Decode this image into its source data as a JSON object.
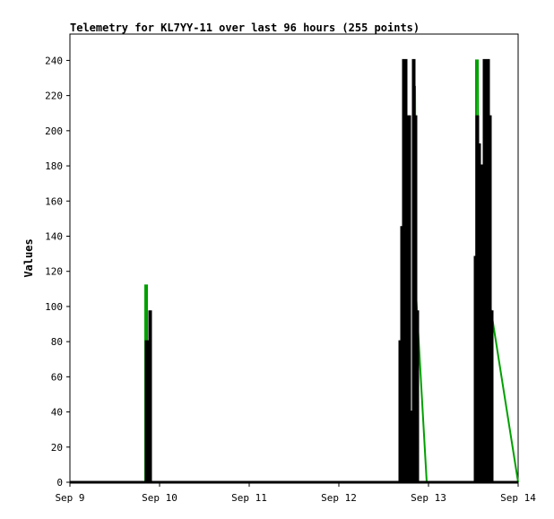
{
  "chart_data": {
    "type": "line",
    "title": "Telemetry for KL7YY-11 over last 96 hours (255 points)",
    "xlabel": "",
    "ylabel": "Values",
    "ylim": [
      0,
      255
    ],
    "yticks": [
      0,
      20,
      40,
      60,
      80,
      100,
      120,
      140,
      160,
      180,
      200,
      220,
      240
    ],
    "xlim": [
      "Sep 9",
      "Sep 14"
    ],
    "xticks": [
      "Sep 9",
      "Sep 10",
      "Sep 11",
      "Sep 12",
      "Sep 13",
      "Sep 14"
    ],
    "grid": false,
    "series": [
      {
        "color": "#00a000",
        "points": [
          [
            0.0,
            0
          ],
          [
            0.84,
            0
          ],
          [
            0.84,
            112
          ],
          [
            0.86,
            112
          ],
          [
            0.86,
            15
          ],
          [
            0.88,
            0
          ],
          [
            3.72,
            0
          ],
          [
            3.72,
            240
          ],
          [
            3.74,
            240
          ],
          [
            3.75,
            60
          ],
          [
            3.78,
            0
          ],
          [
            3.84,
            0
          ],
          [
            3.84,
            225
          ],
          [
            3.85,
            225
          ],
          [
            3.86,
            108
          ],
          [
            3.98,
            0
          ],
          [
            4.53,
            0
          ],
          [
            4.53,
            240
          ],
          [
            4.55,
            240
          ],
          [
            4.56,
            110
          ],
          [
            4.6,
            0
          ],
          [
            4.68,
            0
          ],
          [
            4.68,
            190
          ],
          [
            4.69,
            100
          ],
          [
            4.7,
            97
          ],
          [
            5.0,
            0
          ]
        ]
      },
      {
        "color": "#d000d0",
        "points": [
          [
            3.74,
            0
          ],
          [
            3.74,
            180
          ],
          [
            3.76,
            60
          ],
          [
            3.78,
            0
          ],
          [
            4.58,
            0
          ],
          [
            4.58,
            115
          ],
          [
            4.6,
            60
          ],
          [
            4.62,
            0
          ]
        ]
      },
      {
        "color": "#000000",
        "points": [
          [
            0.0,
            0
          ],
          [
            0.85,
            0
          ],
          [
            0.85,
            80
          ],
          [
            0.86,
            80
          ],
          [
            0.86,
            0
          ],
          [
            0.87,
            0
          ],
          [
            0.87,
            80
          ],
          [
            0.88,
            80
          ],
          [
            0.88,
            0
          ],
          [
            0.89,
            0
          ],
          [
            0.89,
            97
          ],
          [
            0.9,
            97
          ],
          [
            0.9,
            0
          ],
          [
            3.68,
            0
          ],
          [
            3.68,
            80
          ],
          [
            3.69,
            80
          ],
          [
            3.69,
            0
          ],
          [
            3.7,
            0
          ],
          [
            3.7,
            145
          ],
          [
            3.71,
            145
          ],
          [
            3.71,
            0
          ],
          [
            3.72,
            0
          ],
          [
            3.72,
            240
          ],
          [
            3.73,
            240
          ],
          [
            3.73,
            0
          ],
          [
            3.74,
            0
          ],
          [
            3.74,
            240
          ],
          [
            3.75,
            240
          ],
          [
            3.75,
            0
          ],
          [
            3.76,
            0
          ],
          [
            3.76,
            97
          ],
          [
            3.77,
            97
          ],
          [
            3.77,
            0
          ],
          [
            3.78,
            0
          ],
          [
            3.78,
            208
          ],
          [
            3.79,
            208
          ],
          [
            3.79,
            0
          ],
          [
            3.81,
            0
          ],
          [
            3.81,
            40
          ],
          [
            3.82,
            40
          ],
          [
            3.82,
            0
          ],
          [
            3.83,
            0
          ],
          [
            3.83,
            240
          ],
          [
            3.84,
            240
          ],
          [
            3.84,
            0
          ],
          [
            3.85,
            0
          ],
          [
            3.85,
            208
          ],
          [
            3.86,
            208
          ],
          [
            3.86,
            0
          ],
          [
            3.87,
            0
          ],
          [
            3.87,
            97
          ],
          [
            3.88,
            97
          ],
          [
            3.88,
            0
          ],
          [
            4.52,
            0
          ],
          [
            4.52,
            128
          ],
          [
            4.53,
            128
          ],
          [
            4.53,
            0
          ],
          [
            4.54,
            0
          ],
          [
            4.54,
            208
          ],
          [
            4.55,
            208
          ],
          [
            4.55,
            0
          ],
          [
            4.56,
            0
          ],
          [
            4.56,
            192
          ],
          [
            4.57,
            192
          ],
          [
            4.57,
            0
          ],
          [
            4.58,
            0
          ],
          [
            4.58,
            180
          ],
          [
            4.59,
            180
          ],
          [
            4.59,
            0
          ],
          [
            4.6,
            0
          ],
          [
            4.6,
            156
          ],
          [
            4.61,
            156
          ],
          [
            4.61,
            0
          ],
          [
            4.62,
            0
          ],
          [
            4.62,
            240
          ],
          [
            4.63,
            240
          ],
          [
            4.63,
            0
          ],
          [
            4.64,
            0
          ],
          [
            4.64,
            240
          ],
          [
            4.65,
            240
          ],
          [
            4.65,
            0
          ],
          [
            4.66,
            0
          ],
          [
            4.66,
            240
          ],
          [
            4.67,
            240
          ],
          [
            4.67,
            0
          ],
          [
            4.68,
            0
          ],
          [
            4.68,
            208
          ],
          [
            4.69,
            208
          ],
          [
            4.69,
            0
          ],
          [
            4.7,
            0
          ],
          [
            4.7,
            97
          ],
          [
            4.71,
            97
          ],
          [
            4.71,
            0
          ],
          [
            5.0,
            0
          ]
        ]
      }
    ]
  }
}
